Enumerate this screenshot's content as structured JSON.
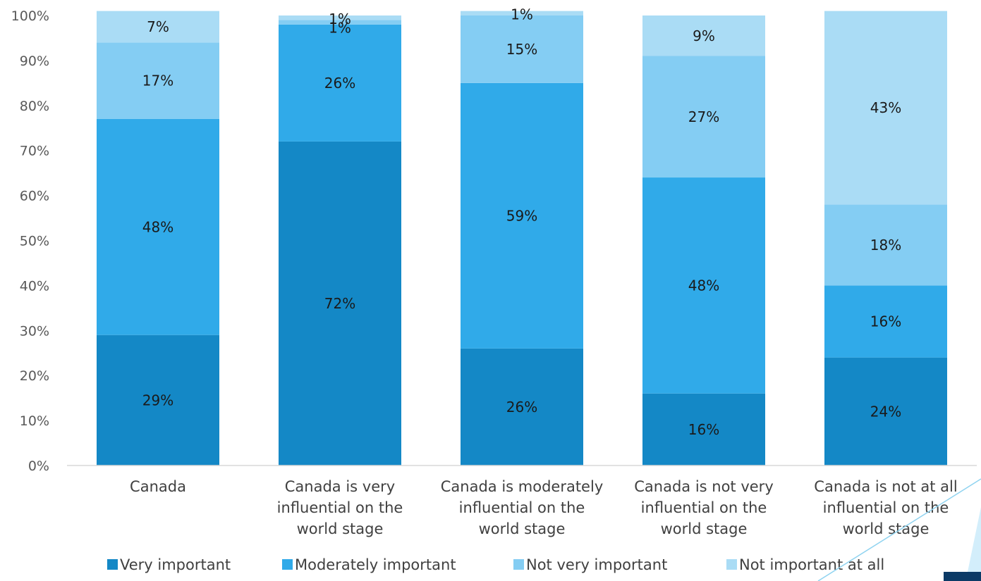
{
  "chart_data": {
    "type": "bar",
    "stacked": true,
    "categories": [
      "Canada",
      "Canada is very influential on the world stage",
      "Canada is moderately influential on the world stage",
      "Canada is not very influential on the world stage",
      "Canada is not at all influential on the world stage"
    ],
    "category_lines": [
      [
        "Canada"
      ],
      [
        "Canada is very",
        "influential on the",
        "world stage"
      ],
      [
        "Canada is moderately",
        "influential on the",
        "world stage"
      ],
      [
        "Canada is not very",
        "influential on the",
        "world stage"
      ],
      [
        "Canada is not at all",
        "influential on the",
        "world stage"
      ]
    ],
    "series": [
      {
        "name": "Very important",
        "color": "#1488c6",
        "values": [
          29,
          72,
          26,
          16,
          24
        ],
        "labels": [
          "29%",
          "72%",
          "26%",
          "16%",
          "24%"
        ]
      },
      {
        "name": "Moderately important",
        "color": "#30aae9",
        "values": [
          48,
          26,
          59,
          48,
          16
        ],
        "labels": [
          "48%",
          "26%",
          "59%",
          "48%",
          "16%"
        ]
      },
      {
        "name": "Not very important",
        "color": "#84cdf3",
        "values": [
          17,
          1,
          15,
          27,
          18
        ],
        "labels": [
          "17%",
          "1%",
          "15%",
          "27%",
          "18%"
        ]
      },
      {
        "name": "Not important at all",
        "color": "#aadcf5",
        "values": [
          7,
          1,
          1,
          9,
          43
        ],
        "labels": [
          "7%",
          "1%",
          "1%",
          "9%",
          "43%"
        ]
      }
    ],
    "y_ticks": [
      "0%",
      "10%",
      "20%",
      "30%",
      "40%",
      "50%",
      "60%",
      "70%",
      "80%",
      "90%",
      "100%"
    ],
    "ylim": [
      0,
      100
    ],
    "title": "",
    "xlabel": "",
    "ylabel": "",
    "grid": false,
    "legend_position": "bottom"
  }
}
